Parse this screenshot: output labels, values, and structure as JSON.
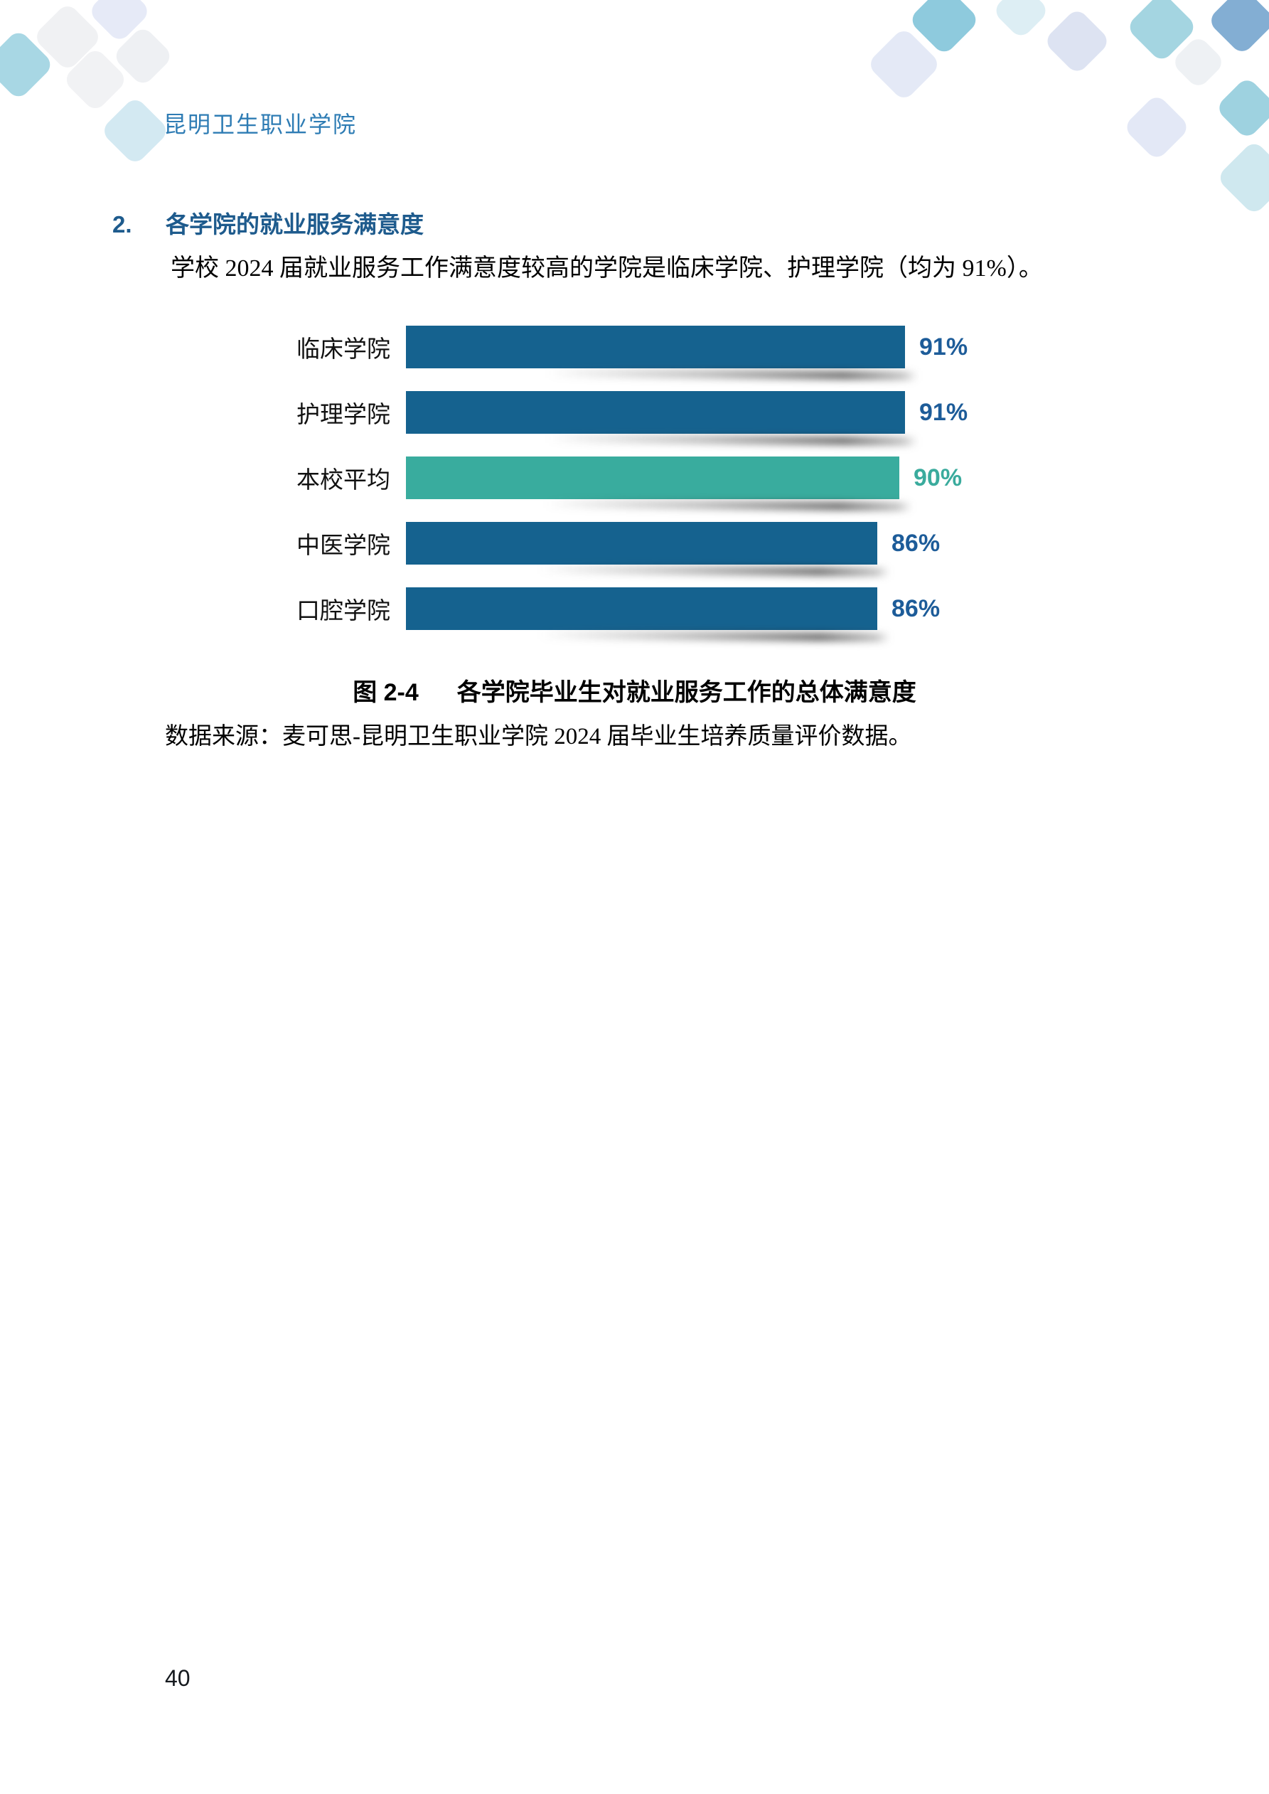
{
  "header": {
    "school_name": "昆明卫生职业学院"
  },
  "section": {
    "number": "2.",
    "title": "各学院的就业服务满意度"
  },
  "paragraph": "学校 2024 届就业服务工作满意度较高的学院是临床学院、护理学院（均为 91%）。",
  "chart_data": {
    "type": "bar",
    "orientation": "horizontal",
    "title": "各学院毕业生对就业服务工作的总体满意度",
    "categories": [
      "临床学院",
      "护理学院",
      "本校平均",
      "中医学院",
      "口腔学院"
    ],
    "values": [
      91,
      91,
      90,
      86,
      86
    ],
    "value_labels": [
      "91%",
      "91%",
      "90%",
      "86%",
      "86%"
    ],
    "highlight_index": 2,
    "bar_color": "#15628f",
    "highlight_bar_color": "#39ac9e",
    "value_label_color": "#1d5c99",
    "highlight_value_label_color": "#3aab9d",
    "xlim": [
      0,
      100
    ],
    "grid": false,
    "axis_visible": false,
    "legend": false
  },
  "figure_caption": {
    "label": "图 2-4",
    "title": "各学院毕业生对就业服务工作的总体满意度"
  },
  "source_note": "数据来源：麦可思-昆明卫生职业学院 2024 届毕业生培养质量评价数据。",
  "footer": {
    "page_number": "40"
  },
  "colors": {
    "header_text": "#2e7cb4",
    "section_heading": "#1e5b8d",
    "bar_blue": "#15628f",
    "bar_teal": "#39ac9e"
  }
}
